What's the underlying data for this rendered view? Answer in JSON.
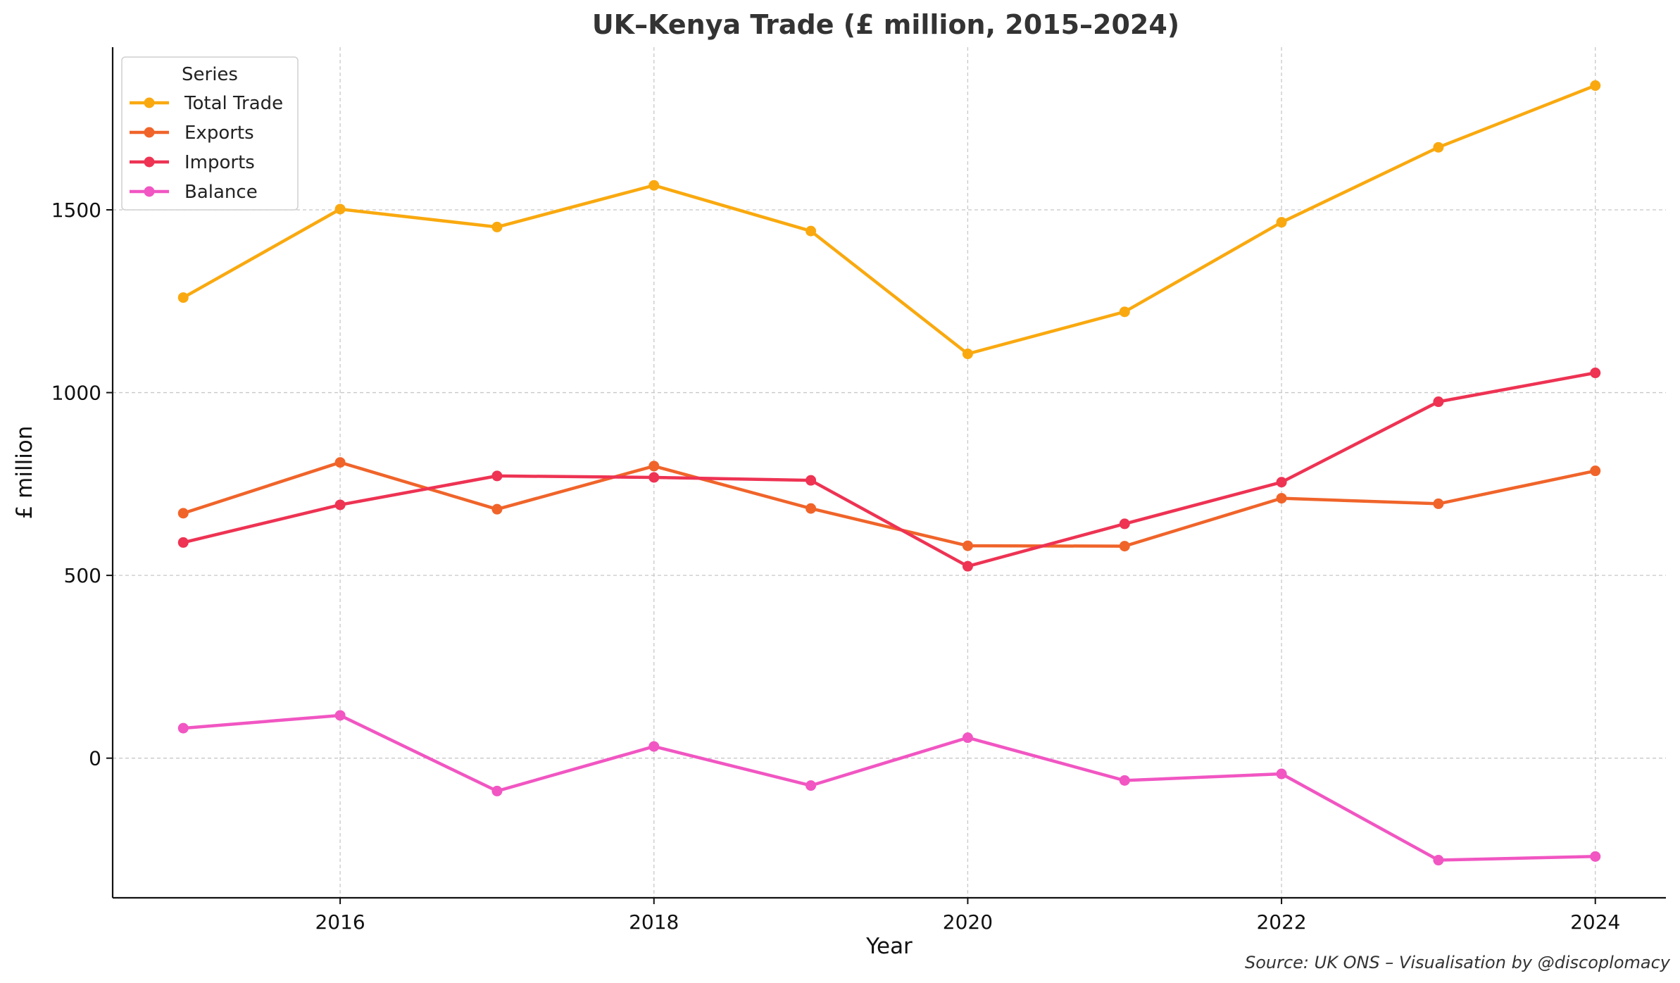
{
  "chart_data": {
    "type": "line",
    "title": "UK–Kenya Trade (£ million, 2015–2024)",
    "xlabel": "Year",
    "ylabel": "£ million",
    "x": [
      2015,
      2016,
      2017,
      2018,
      2019,
      2020,
      2021,
      2022,
      2023,
      2024
    ],
    "xlim": [
      2014.55,
      2024.45
    ],
    "ylim": [
      -382,
      1945
    ],
    "x_ticks": [
      2016,
      2018,
      2020,
      2022,
      2024
    ],
    "y_ticks": [
      0,
      500,
      1000,
      1500
    ],
    "grid": true,
    "legend_title": "Series",
    "legend_position": "top-left",
    "series": [
      {
        "name": "Total Trade",
        "color": "#F9A90F",
        "values": [
          1260,
          1502,
          1453,
          1567,
          1442,
          1106,
          1221,
          1466,
          1671,
          1840
        ]
      },
      {
        "name": "Exports",
        "color": "#F0642A",
        "values": [
          670,
          809,
          681,
          799,
          683,
          581,
          580,
          711,
          696,
          786
        ]
      },
      {
        "name": "Imports",
        "color": "#EE3353",
        "values": [
          590,
          693,
          772,
          768,
          760,
          525,
          641,
          755,
          975,
          1054
        ]
      },
      {
        "name": "Balance",
        "color": "#F156C2",
        "values": [
          82,
          117,
          -90,
          32,
          -75,
          56,
          -61,
          -43,
          -279,
          -269
        ]
      }
    ],
    "source": "Source: UK ONS – Visualisation by @discoplomacy"
  }
}
